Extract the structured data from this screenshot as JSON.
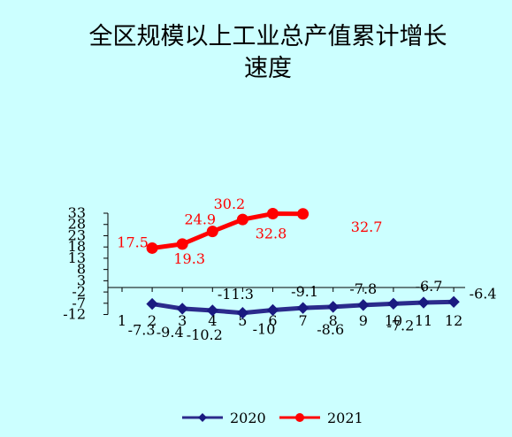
{
  "chart_data": {
    "type": "line",
    "title_lines": [
      "全区规模以上工业总产值累计增长",
      "速度"
    ],
    "xlabel": "",
    "ylabel": "",
    "x": [
      1,
      2,
      3,
      4,
      5,
      6,
      7,
      8,
      9,
      10,
      11,
      12
    ],
    "x_tick_labels": [
      "1",
      "2",
      "3",
      "4",
      "5",
      "6",
      "7",
      "8",
      "9",
      "10",
      "11",
      "12"
    ],
    "y_ticks": [
      -12,
      -7,
      -2,
      3,
      8,
      13,
      18,
      23,
      28,
      33
    ],
    "ylim": [
      -12,
      33
    ],
    "grid": false,
    "legend": "bottom",
    "series": [
      {
        "name": "2020",
        "color": "#2b2b8c",
        "marker": "diamond",
        "x": [
          2,
          3,
          4,
          5,
          6,
          7,
          8,
          9,
          10,
          11,
          12
        ],
        "values": [
          -7.3,
          -9.4,
          -10.2,
          -11.3,
          -10,
          -9.1,
          -8.6,
          -7.8,
          -7.2,
          -6.7,
          -6.4
        ],
        "labels": [
          "-7.3",
          "-9.4",
          "-10.2",
          "-11.3",
          "-10",
          "-9.1",
          "-8.6",
          "-7.8",
          "-7.2",
          "-6.7",
          "-6.4"
        ]
      },
      {
        "name": "2021",
        "color": "#ff0000",
        "marker": "circle",
        "x": [
          2,
          3,
          4,
          5,
          6,
          7
        ],
        "values": [
          17.5,
          19.3,
          24.9,
          30.2,
          32.8,
          32.7
        ],
        "labels": [
          "17.5",
          "19.3",
          "24.9",
          "30.2",
          "32.8",
          "32.7"
        ]
      }
    ]
  }
}
